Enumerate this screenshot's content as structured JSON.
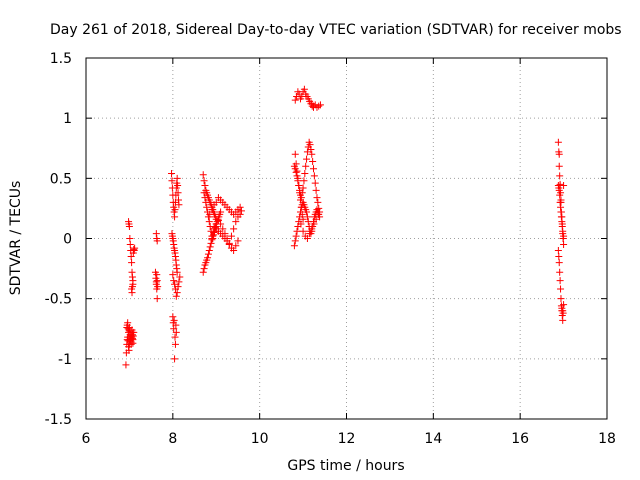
{
  "chart_data": {
    "type": "scatter",
    "title": "Day 261 of 2018, Sidereal Day-to-day VTEC variation (SDTVAR) for receiver mobs",
    "xlabel": "GPS time / hours",
    "ylabel": "SDTVAR / TECUs",
    "xlim": [
      6,
      18
    ],
    "ylim": [
      -1.5,
      1.5
    ],
    "xticks": [
      6,
      8,
      10,
      12,
      14,
      16,
      18
    ],
    "yticks": [
      -1.5,
      -1,
      -0.5,
      0,
      0.5,
      1,
      1.5
    ],
    "xtick_labels": [
      "6",
      "8",
      "10",
      "12",
      "14",
      "16",
      "18"
    ],
    "ytick_labels": [
      "-1.5",
      "-1",
      "-0.5",
      "0",
      "0.5",
      "1",
      "1.5"
    ],
    "grid": true,
    "marker": "+",
    "color": "#ff0000",
    "x": [
      6.92,
      6.93,
      6.94,
      6.95,
      6.96,
      6.97,
      6.98,
      6.99,
      7.0,
      7.01,
      7.02,
      7.03,
      7.04,
      7.05,
      7.06,
      7.07,
      7.08,
      6.94,
      6.95,
      6.96,
      6.97,
      6.98,
      6.99,
      7.0,
      7.01,
      7.02,
      7.03,
      7.04,
      7.05,
      7.06,
      7.07,
      7.08,
      7.09,
      7.1,
      6.98,
      6.99,
      7.0,
      7.01,
      7.02,
      7.03,
      7.04,
      7.05,
      7.06,
      7.07,
      7.08,
      7.05,
      7.06,
      7.07,
      7.08,
      7.09,
      7.1,
      7.11,
      7.12,
      7.6,
      7.61,
      7.62,
      7.63,
      7.64,
      7.62,
      7.63,
      7.64,
      7.62,
      7.63,
      7.64,
      7.65,
      7.97,
      7.98,
      7.99,
      8.0,
      8.01,
      8.02,
      8.03,
      8.04,
      8.05,
      8.06,
      8.07,
      8.08,
      8.09,
      8.1,
      8.11,
      8.12,
      8.13,
      8.14,
      7.98,
      7.99,
      8.0,
      8.01,
      8.02,
      8.03,
      8.04,
      8.05,
      8.06,
      8.07,
      8.08,
      8.09,
      8.1,
      8.0,
      8.02,
      8.04,
      8.06,
      8.08,
      8.1,
      8.12,
      8.14,
      8.16,
      8.0,
      8.01,
      8.02,
      8.03,
      8.04,
      8.05,
      8.06,
      8.07,
      8.08,
      8.7,
      8.72,
      8.74,
      8.76,
      8.78,
      8.8,
      8.82,
      8.84,
      8.86,
      8.88,
      8.9,
      8.92,
      8.94,
      8.96,
      8.98,
      9.0,
      8.72,
      8.74,
      8.76,
      8.78,
      8.8,
      8.82,
      8.84,
      8.86,
      8.88,
      8.9,
      8.92,
      8.94,
      8.96,
      8.98,
      9.0,
      8.7,
      8.72,
      8.74,
      8.76,
      8.78,
      8.8,
      8.82,
      8.84,
      8.86,
      8.88,
      8.9,
      8.92,
      8.94,
      8.96,
      8.98,
      9.0,
      9.02,
      9.04,
      9.06,
      9.08,
      9.1,
      8.85,
      8.9,
      8.95,
      9.0,
      9.05,
      9.1,
      9.15,
      9.2,
      9.25,
      9.3,
      9.35,
      9.4,
      9.45,
      9.5,
      9.55,
      8.95,
      9.0,
      9.05,
      9.1,
      9.15,
      9.2,
      9.25,
      9.3,
      9.35,
      9.4,
      9.45,
      9.5,
      9.55,
      9.58,
      8.9,
      8.95,
      9.0,
      9.05,
      9.1,
      9.15,
      9.2,
      9.25,
      9.3,
      9.35,
      9.4,
      9.45,
      9.5,
      10.82,
      10.85,
      10.88,
      10.91,
      10.94,
      10.97,
      11.0,
      11.03,
      11.06,
      11.09,
      11.12,
      11.15,
      11.18,
      11.21,
      11.24,
      10.8,
      10.82,
      10.84,
      10.86,
      10.88,
      10.9,
      10.92,
      10.94,
      10.96,
      10.98,
      11.0,
      11.02,
      11.04,
      11.06,
      11.08,
      11.1,
      11.12,
      11.14,
      11.16,
      11.18,
      11.2,
      11.22,
      11.24,
      11.26,
      11.28,
      11.3,
      11.32,
      11.34,
      11.36,
      10.82,
      10.84,
      10.86,
      10.88,
      10.9,
      10.92,
      10.94,
      10.96,
      10.98,
      11.0,
      10.8,
      10.82,
      10.84,
      10.86,
      10.88,
      10.9,
      10.92,
      10.94,
      10.96,
      10.98,
      11.0,
      11.02,
      11.04,
      11.06,
      11.08,
      11.1,
      11.12,
      11.14,
      11.16,
      11.18,
      11.2,
      11.22,
      11.24,
      11.26,
      11.28,
      11.3,
      11.32,
      11.34,
      11.36,
      11.38,
      10.95,
      11.0,
      11.05,
      11.1,
      11.15,
      11.2,
      11.25,
      11.3,
      11.35,
      11.38,
      11.2,
      11.24,
      11.28,
      11.32,
      11.36,
      11.4,
      16.88,
      16.89,
      16.9,
      16.91,
      16.92,
      16.93,
      16.94,
      16.95,
      16.96,
      16.97,
      16.98,
      16.99,
      17.0,
      16.88,
      16.89,
      16.9,
      16.91,
      16.92,
      16.93,
      16.94,
      16.95,
      16.96,
      16.97,
      16.98,
      16.99,
      17.0,
      16.88,
      16.89,
      16.9,
      16.91,
      16.92,
      16.93,
      16.94,
      16.95,
      16.96,
      16.97,
      16.98,
      16.99,
      17.0,
      16.9,
      16.92,
      16.94,
      16.96,
      16.98,
      17.0
    ],
    "y": [
      -1.05,
      -0.95,
      -0.88,
      -0.84,
      -0.82,
      -0.85,
      -0.9,
      -0.93,
      -0.88,
      -0.84,
      -0.8,
      -0.85,
      -0.88,
      -0.82,
      -0.78,
      -0.83,
      -0.87,
      -0.74,
      -0.72,
      -0.7,
      -0.75,
      -0.78,
      -0.76,
      -0.74,
      -0.77,
      -0.8,
      -0.83,
      -0.86,
      -0.81,
      -0.76,
      -0.8,
      -0.84,
      -0.81,
      -0.78,
      0.14,
      0.12,
      0.1,
      0.0,
      -0.05,
      -0.1,
      -0.15,
      -0.2,
      -0.28,
      -0.32,
      -0.38,
      -0.42,
      -0.45,
      -0.4,
      -0.35,
      -0.12,
      -0.09,
      -0.1,
      -0.08,
      -0.28,
      -0.33,
      -0.38,
      -0.42,
      -0.5,
      0.04,
      0.0,
      -0.02,
      -0.36,
      -0.3,
      -0.35,
      -0.4,
      0.54,
      0.48,
      0.42,
      0.36,
      0.3,
      0.26,
      0.22,
      0.18,
      0.24,
      0.3,
      0.36,
      0.42,
      0.46,
      0.5,
      0.44,
      0.38,
      0.32,
      0.28,
      0.04,
      0.02,
      0.0,
      -0.02,
      -0.05,
      -0.08,
      -0.1,
      -0.12,
      -0.15,
      -0.18,
      -0.22,
      -0.25,
      -0.28,
      -0.3,
      -0.35,
      -0.38,
      -0.42,
      -0.48,
      -0.45,
      -0.4,
      -0.36,
      -0.32,
      -0.65,
      -0.7,
      -0.75,
      -0.68,
      -1.0,
      -0.82,
      -0.88,
      -0.72,
      -0.78,
      0.53,
      0.48,
      0.44,
      0.4,
      0.38,
      0.36,
      0.34,
      0.32,
      0.3,
      0.28,
      0.26,
      0.24,
      0.22,
      0.2,
      0.18,
      0.16,
      0.38,
      0.34,
      0.3,
      0.26,
      0.22,
      0.18,
      0.14,
      0.1,
      0.06,
      0.02,
      0.0,
      0.03,
      0.06,
      0.09,
      0.12,
      -0.28,
      -0.25,
      -0.22,
      -0.2,
      -0.18,
      -0.16,
      -0.13,
      -0.1,
      -0.07,
      -0.04,
      -0.01,
      0.02,
      0.05,
      0.08,
      0.1,
      0.12,
      0.14,
      0.16,
      0.18,
      0.2,
      0.22,
      0.2,
      0.24,
      0.28,
      0.3,
      0.34,
      0.32,
      0.3,
      0.28,
      0.26,
      0.24,
      0.22,
      0.2,
      0.22,
      0.24,
      0.26,
      0.1,
      0.08,
      0.06,
      0.04,
      0.02,
      0.0,
      -0.02,
      -0.04,
      0.02,
      0.08,
      0.14,
      0.18,
      0.2,
      0.23,
      0.0,
      0.05,
      0.1,
      0.15,
      0.12,
      0.08,
      0.04,
      0.0,
      -0.05,
      -0.08,
      -0.1,
      -0.06,
      -0.02,
      1.15,
      1.18,
      1.22,
      1.2,
      1.16,
      1.18,
      1.22,
      1.24,
      1.2,
      1.18,
      1.16,
      1.14,
      1.12,
      1.1,
      1.09,
      0.6,
      0.58,
      0.55,
      0.52,
      0.48,
      0.44,
      0.4,
      0.36,
      0.34,
      0.38,
      0.42,
      0.48,
      0.54,
      0.6,
      0.66,
      0.72,
      0.76,
      0.8,
      0.78,
      0.74,
      0.7,
      0.64,
      0.58,
      0.52,
      0.46,
      0.4,
      0.34,
      0.3,
      0.25,
      0.7,
      0.62,
      0.56,
      0.5,
      0.44,
      0.38,
      0.32,
      0.26,
      0.2,
      0.16,
      -0.06,
      -0.02,
      0.02,
      0.06,
      0.1,
      0.14,
      0.18,
      0.22,
      0.26,
      0.28,
      0.3,
      0.28,
      0.26,
      0.24,
      0.22,
      0.18,
      0.14,
      0.1,
      0.06,
      0.04,
      0.06,
      0.1,
      0.14,
      0.18,
      0.2,
      0.22,
      0.24,
      0.22,
      0.2,
      0.18,
      0.12,
      0.06,
      0.02,
      0.0,
      0.04,
      0.08,
      0.12,
      0.16,
      0.2,
      0.22,
      1.12,
      1.1,
      1.11,
      1.09,
      1.1,
      1.11,
      0.8,
      0.72,
      0.6,
      0.52,
      0.44,
      0.38,
      0.3,
      0.22,
      0.18,
      0.12,
      0.06,
      0.0,
      -0.05,
      -0.1,
      -0.15,
      -0.2,
      -0.28,
      -0.35,
      -0.42,
      -0.5,
      -0.56,
      -0.6,
      -0.64,
      -0.68,
      -0.62,
      -0.55,
      0.44,
      0.42,
      0.4,
      0.36,
      0.3,
      0.26,
      0.22,
      0.18,
      0.14,
      0.1,
      0.04,
      0.0,
      0.02,
      0.7,
      0.45,
      0.32,
      -0.58,
      -0.6,
      0.44
    ]
  }
}
